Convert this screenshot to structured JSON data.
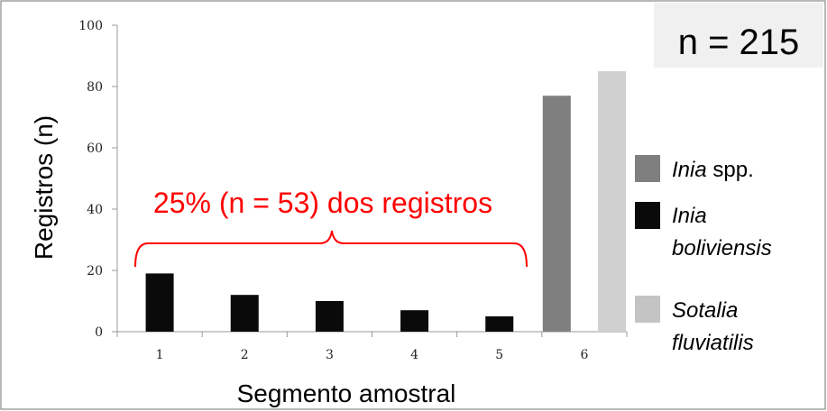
{
  "chart_data": {
    "type": "bar",
    "categories": [
      "1",
      "2",
      "3",
      "4",
      "5",
      "6"
    ],
    "xlabel": "Segmento amostral",
    "ylabel": "Registros (n)",
    "ylim": [
      0,
      100
    ],
    "yticks": [
      0,
      20,
      40,
      60,
      80,
      100
    ],
    "gridlines": false,
    "series": [
      {
        "name": "Inia boliviensis",
        "color": "#0a0a0a",
        "values": [
          19,
          12,
          10,
          7,
          5,
          null
        ]
      },
      {
        "name": "Inia spp.",
        "color": "#7f7f7f",
        "values": [
          null,
          null,
          null,
          null,
          null,
          77
        ]
      },
      {
        "name": "Sotalia fluviatilis",
        "color": "#d0d0d0",
        "values": [
          null,
          null,
          null,
          null,
          null,
          85
        ]
      }
    ],
    "legend": {
      "placement": "right",
      "entries": [
        {
          "italic": "Inia",
          "rest": " spp.",
          "color": "#7f7f7f"
        },
        {
          "italic": "Inia",
          "line2": "boliviensis",
          "color": "#0a0a0a"
        },
        {
          "italic": "Sotalia",
          "line2": "fluviatilis",
          "color": "#c4c4c4"
        }
      ]
    },
    "sample_size_label": "n = 215",
    "annotation": {
      "text": "25% (n = 53) dos registros",
      "spans_categories": [
        "1",
        "5"
      ],
      "color": "#ff0000"
    }
  }
}
